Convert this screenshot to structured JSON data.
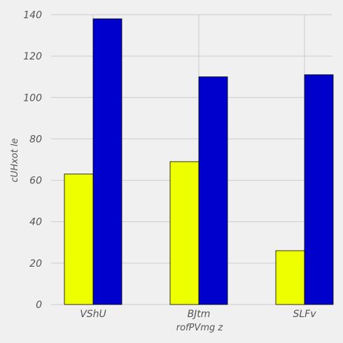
{
  "chart_data": {
    "type": "bar",
    "title": "",
    "xlabel": "rofPVmg z",
    "ylabel": "cUHxot le",
    "categories": [
      "VShU",
      "BJtm",
      "SLFv"
    ],
    "series": [
      {
        "color": "#eeff00",
        "values": [
          63,
          69,
          26
        ]
      },
      {
        "color": "#0000cc",
        "values": [
          138,
          110,
          111
        ]
      }
    ],
    "ylim": [
      0,
      140
    ],
    "yticks": [
      0,
      20,
      40,
      60,
      80,
      100,
      120,
      140
    ],
    "grid": true,
    "legend": "none",
    "background": "#f0f0f0"
  }
}
